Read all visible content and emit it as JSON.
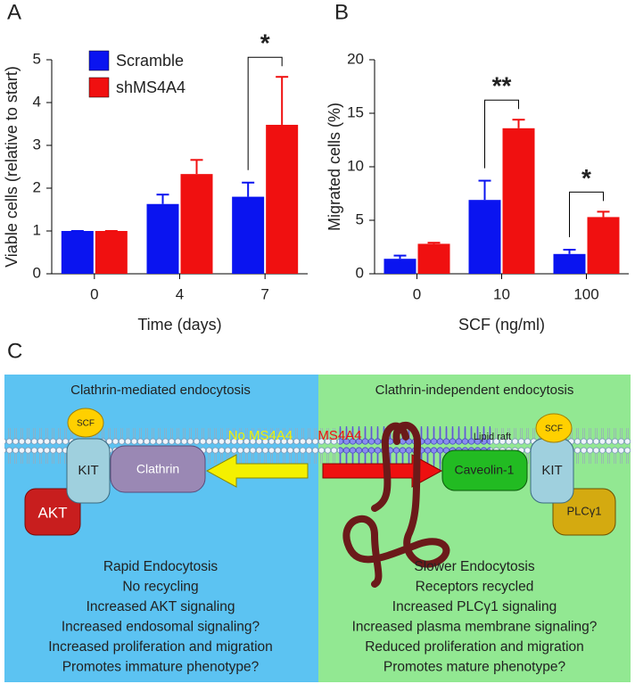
{
  "chart_data": [
    {
      "type": "bar",
      "panel": "A",
      "categories": [
        "0",
        "4",
        "7"
      ],
      "xlabel": "Time (days)",
      "ylabel": "Viable cells (relative to start)",
      "ylim": [
        0,
        5
      ],
      "yticks": [
        0,
        1,
        2,
        3,
        4,
        5
      ],
      "series": [
        {
          "name": "Scramble",
          "color": "#0a14f0",
          "values": [
            1,
            1.63,
            1.8
          ],
          "errors": [
            0,
            0.22,
            0.33
          ]
        },
        {
          "name": "shMS4A4",
          "color": "#f01010",
          "values": [
            1,
            2.33,
            3.48
          ],
          "errors": [
            0,
            0.33,
            1.12
          ]
        }
      ],
      "legend": true,
      "annotations": [
        {
          "text": "*",
          "x": "7"
        }
      ]
    },
    {
      "type": "bar",
      "panel": "B",
      "categories": [
        "0",
        "10",
        "100"
      ],
      "xlabel": "SCF (ng/ml)",
      "ylabel": "Migrated cells (%)",
      "ylim": [
        0,
        20
      ],
      "yticks": [
        0,
        5,
        10,
        15,
        20
      ],
      "series": [
        {
          "name": "Scramble",
          "color": "#0a14f0",
          "values": [
            1.4,
            6.9,
            1.85
          ],
          "errors": [
            0.3,
            1.8,
            0.4
          ]
        },
        {
          "name": "shMS4A4",
          "color": "#f01010",
          "values": [
            2.8,
            13.6,
            5.3
          ],
          "errors": [
            0.1,
            0.8,
            0.5
          ]
        }
      ],
      "legend": false,
      "annotations": [
        {
          "text": "**",
          "x": "10"
        },
        {
          "text": "*",
          "x": "100"
        }
      ]
    }
  ],
  "diagram": {
    "panel": "C",
    "left_title": "Clathrin-mediated endocytosis",
    "right_title": "Clathrin-independent endocytosis",
    "labels": {
      "scf_left": "SCF",
      "kit_left": "KIT",
      "clathrin": "Clathrin",
      "akt": "AKT",
      "no_ms4a4": "No MS4A4",
      "ms4a4": "MS4A4",
      "lipid_raft": "Lipid raft",
      "caveolin": "Caveolin-1",
      "scf_right": "SCF",
      "kit_right": "KIT",
      "plc": "PLCγ1"
    },
    "left_list": [
      "Rapid Endocytosis",
      "No recycling",
      "Increased AKT signaling",
      "Increased endosomal signaling?",
      "Increased proliferation and migration",
      "Promotes immature phenotype?"
    ],
    "right_list": [
      "Slower Endocytosis",
      "Receptors recycled",
      "Increased PLCγ1 signaling",
      "Increased plasma membrane signaling?",
      "Reduced proliferation and migration",
      "Promotes mature phenotype?"
    ]
  }
}
